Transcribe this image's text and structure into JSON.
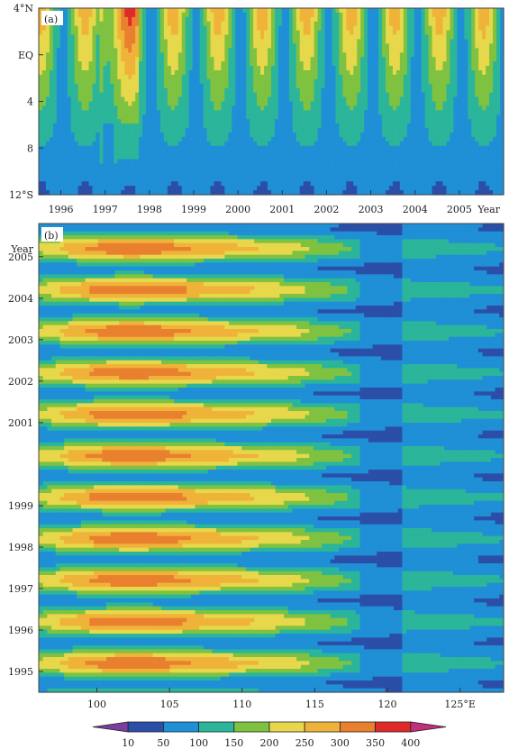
{
  "chart_data": [
    {
      "type": "heatmap",
      "panel_label": "(a)",
      "xlabel": "Year",
      "x_ticks": [
        "1996",
        "1997",
        "1998",
        "1999",
        "2000",
        "2001",
        "2002",
        "2003",
        "2004",
        "2005"
      ],
      "y_ticks": [
        "4°N",
        "EQ",
        "4",
        "8",
        "12°S"
      ],
      "x_range": [
        1995.5,
        2006.0
      ],
      "y_range": [
        4,
        -12
      ],
      "description_values": "field value by year (x) and latitude (y)"
    },
    {
      "type": "heatmap",
      "panel_label": "(b)",
      "ylabel": "Year",
      "x_ticks": [
        "100",
        "105",
        "110",
        "115",
        "120",
        "125°E"
      ],
      "y_ticks": [
        "2005",
        "2004",
        "2003",
        "2002",
        "2001",
        "1999",
        "1998",
        "1997",
        "1996",
        "1995"
      ],
      "x_range": [
        96,
        128
      ],
      "y_range": [
        1994.5,
        2005.8
      ]
    }
  ],
  "colorbar": {
    "levels": [
      "10",
      "50",
      "100",
      "150",
      "200",
      "250",
      "300",
      "350",
      "400"
    ],
    "colors": [
      "#7b3fa0",
      "#2b4fa8",
      "#1f8fd6",
      "#2bb59a",
      "#7fc241",
      "#e6d84a",
      "#f0b33a",
      "#e8802e",
      "#e02a2a",
      "#c2307a"
    ]
  }
}
